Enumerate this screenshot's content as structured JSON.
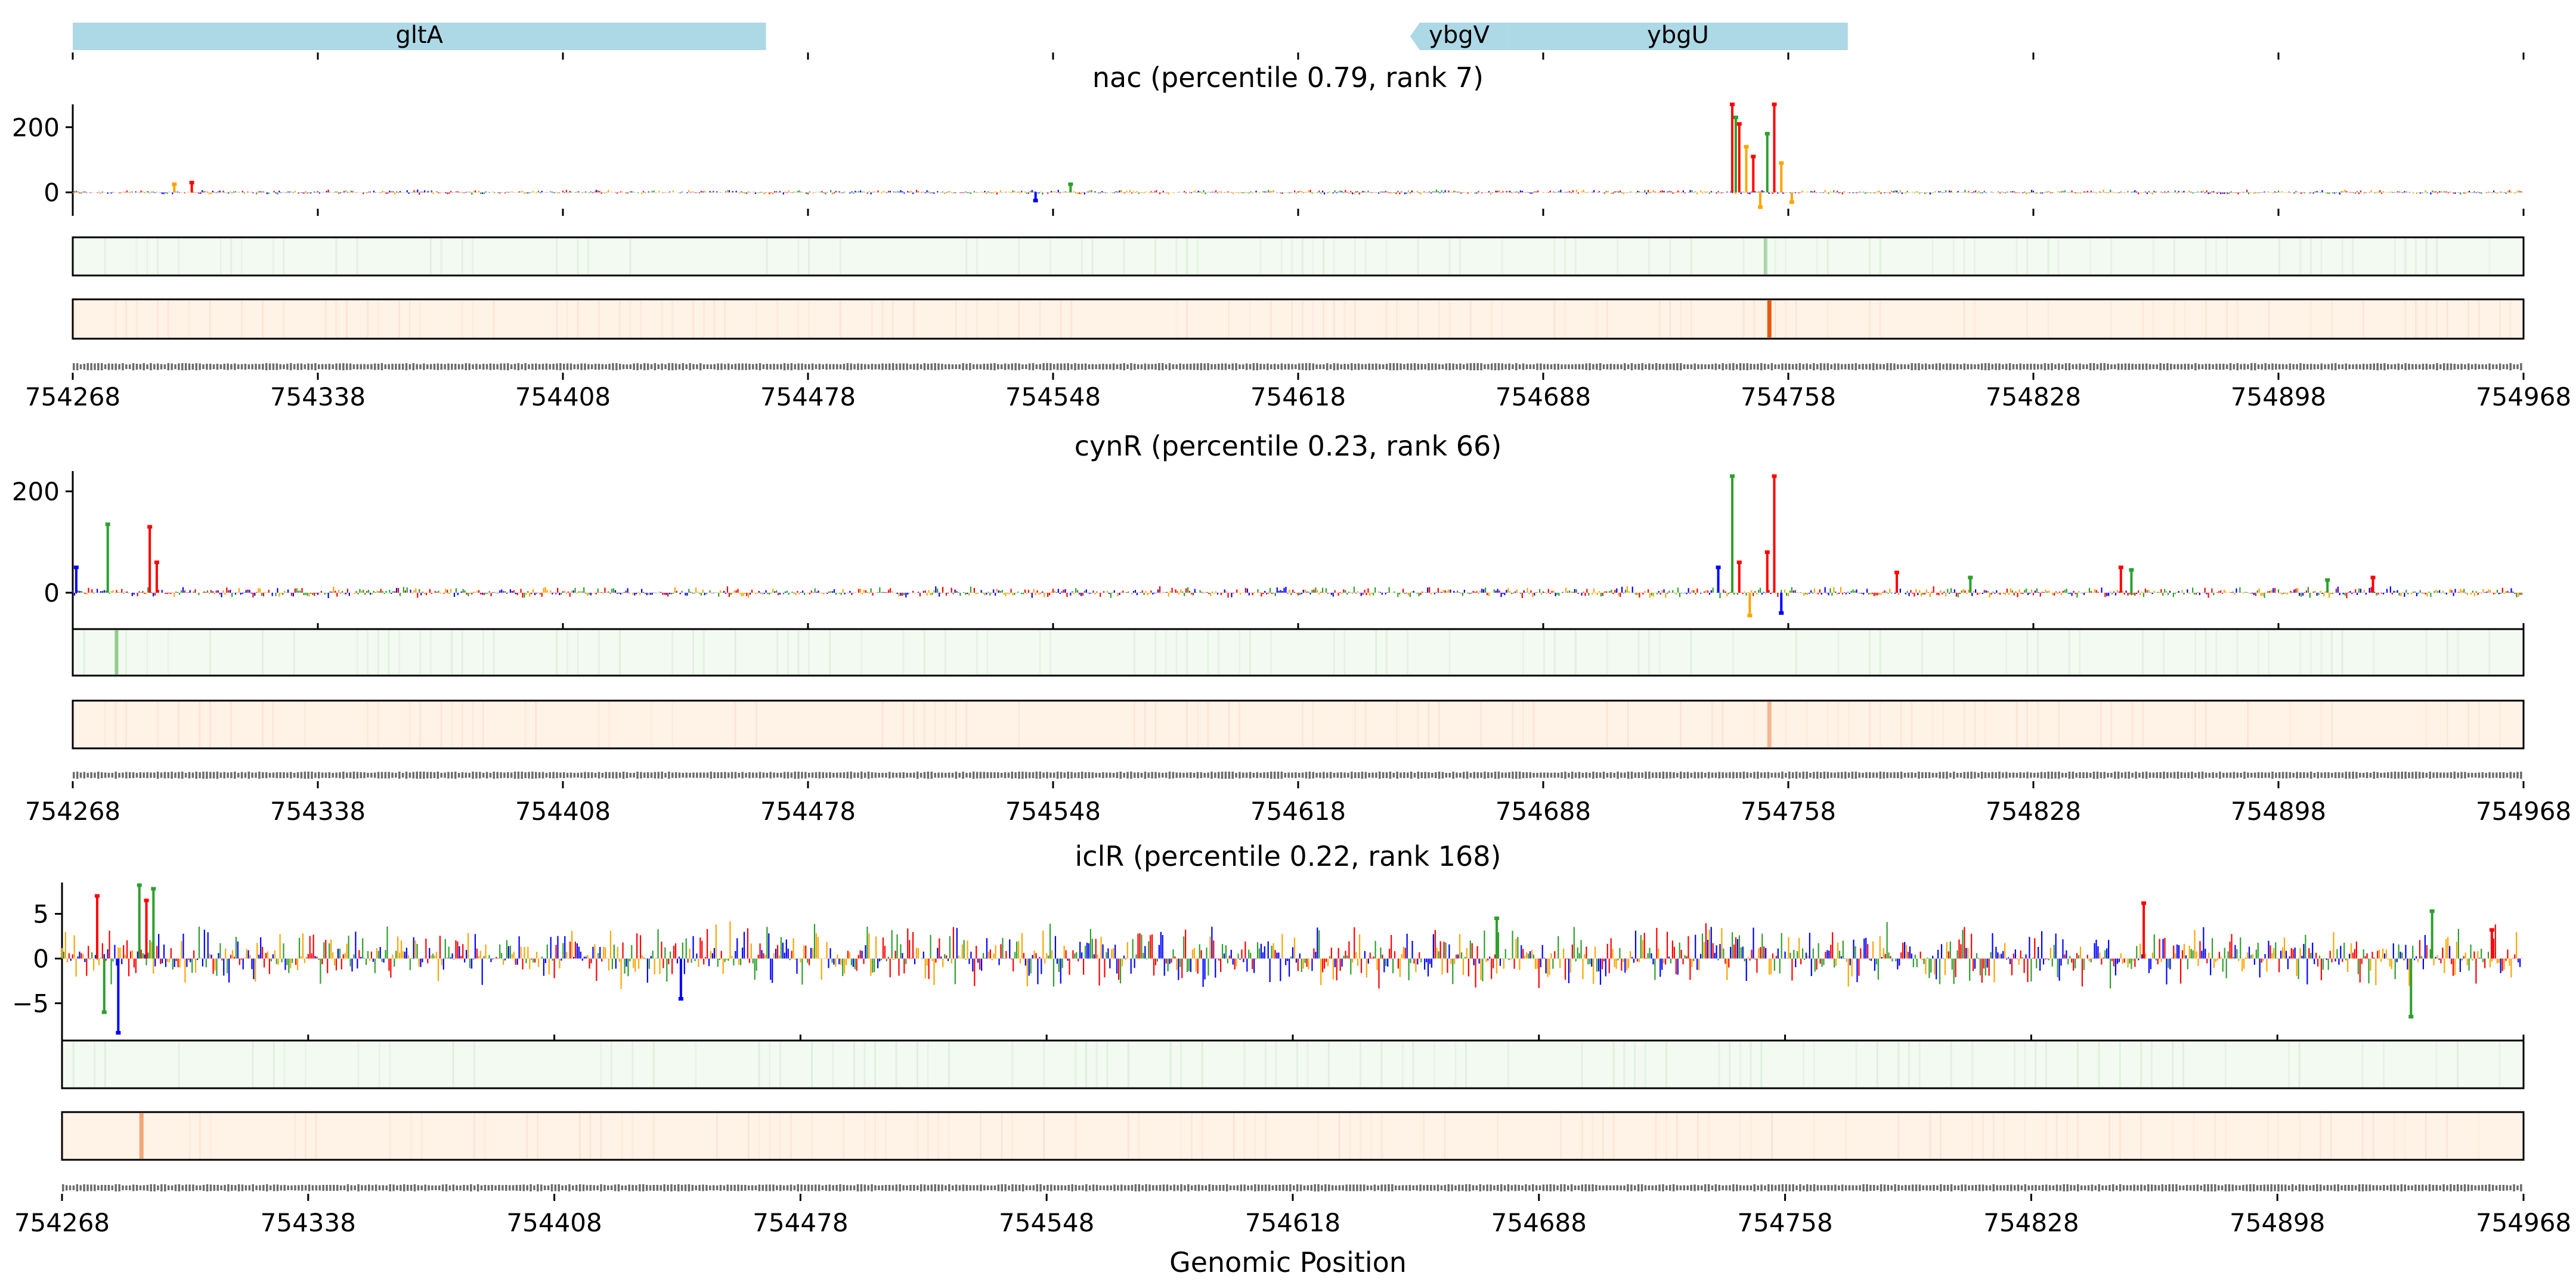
{
  "figure": {
    "xlabel": "Genomic Position"
  },
  "genes": [
    {
      "name": "gltA",
      "start": 754268,
      "end": 754466,
      "strand": "+"
    },
    {
      "name": "ybgV",
      "start": 754650,
      "end": 754678,
      "strand": "-"
    },
    {
      "name": "ybgU",
      "start": 754678,
      "end": 754775,
      "strand": "+"
    }
  ],
  "colors": {
    "gene": "#add8e6",
    "A": "#2ca02c",
    "C": "#0000ff",
    "G": "#ffa500",
    "T": "#ff0000",
    "track1": "#2ca02c",
    "track1_bg": "#f3faf1",
    "track2": "#e8590c",
    "track2_bg": "#fff3e8"
  },
  "chart_data": [
    {
      "type": "bar",
      "title": "nac (percentile 0.79, rank 7)",
      "xlim": [
        754268,
        754968
      ],
      "xticks": [
        "754268",
        "754338",
        "754408",
        "754478",
        "754548",
        "754618",
        "754688",
        "754758",
        "754828",
        "754898",
        "754968"
      ],
      "ylim": [
        -50,
        270
      ],
      "yticks": [
        "200",
        "0"
      ],
      "yticks_values": [
        200,
        0
      ],
      "peaks": [
        {
          "x": 754742,
          "value": 270,
          "base": "T"
        },
        {
          "x": 754743,
          "value": 230,
          "base": "A"
        },
        {
          "x": 754744,
          "value": 210,
          "base": "T"
        },
        {
          "x": 754746,
          "value": 140,
          "base": "G"
        },
        {
          "x": 754748,
          "value": 110,
          "base": "T"
        },
        {
          "x": 754750,
          "value": -45,
          "base": "G"
        },
        {
          "x": 754752,
          "value": 180,
          "base": "A"
        },
        {
          "x": 754754,
          "value": 270,
          "base": "T"
        },
        {
          "x": 754756,
          "value": 90,
          "base": "G"
        },
        {
          "x": 754759,
          "value": -30,
          "base": "G"
        },
        {
          "x": 754297,
          "value": 25,
          "base": "G"
        },
        {
          "x": 754302,
          "value": 30,
          "base": "T"
        },
        {
          "x": 754543,
          "value": -25,
          "base": "C"
        },
        {
          "x": 754553,
          "value": 25,
          "base": "A"
        }
      ],
      "noise": 6,
      "track1_peak": {
        "x": 754751,
        "level": 0.35
      },
      "track2_peak": {
        "x": 754752,
        "level": 1.0
      }
    },
    {
      "type": "bar",
      "title": "cynR (percentile 0.23, rank 66)",
      "xlim": [
        754268,
        754968
      ],
      "xticks": [
        "754268",
        "754338",
        "754408",
        "754478",
        "754548",
        "754618",
        "754688",
        "754758",
        "754828",
        "754898",
        "754968"
      ],
      "ylim": [
        -60,
        240
      ],
      "yticks": [
        "200",
        "0"
      ],
      "yticks_values": [
        200,
        0
      ],
      "peaks": [
        {
          "x": 754278,
          "value": 135,
          "base": "A"
        },
        {
          "x": 754290,
          "value": 130,
          "base": "T"
        },
        {
          "x": 754292,
          "value": 60,
          "base": "T"
        },
        {
          "x": 754269,
          "value": 50,
          "base": "C"
        },
        {
          "x": 754742,
          "value": 230,
          "base": "A"
        },
        {
          "x": 754744,
          "value": 60,
          "base": "T"
        },
        {
          "x": 754747,
          "value": -45,
          "base": "G"
        },
        {
          "x": 754752,
          "value": 80,
          "base": "T"
        },
        {
          "x": 754754,
          "value": 230,
          "base": "T"
        },
        {
          "x": 754756,
          "value": -40,
          "base": "C"
        },
        {
          "x": 754738,
          "value": 50,
          "base": "C"
        },
        {
          "x": 754789,
          "value": 40,
          "base": "T"
        },
        {
          "x": 754810,
          "value": 30,
          "base": "A"
        },
        {
          "x": 754853,
          "value": 50,
          "base": "T"
        },
        {
          "x": 754856,
          "value": 45,
          "base": "A"
        },
        {
          "x": 754912,
          "value": 25,
          "base": "A"
        },
        {
          "x": 754925,
          "value": 30,
          "base": "T"
        }
      ],
      "noise": 9,
      "track1_peak": {
        "x": 754280,
        "level": 0.5
      },
      "track2_peak": {
        "x": 754752,
        "level": 0.4
      }
    },
    {
      "type": "bar",
      "title": "iclR (percentile 0.22, rank 168)",
      "xlim": [
        754268,
        754968
      ],
      "xticks": [
        "754268",
        "754338",
        "754408",
        "754478",
        "754548",
        "754618",
        "754688",
        "754758",
        "754828",
        "754898",
        "754968"
      ],
      "ylim": [
        -8.5,
        8.5
      ],
      "yticks": [
        "5",
        "0",
        "−5"
      ],
      "yticks_values": [
        5,
        0,
        -5
      ],
      "peaks": [
        {
          "x": 754278,
          "value": 7,
          "base": "T"
        },
        {
          "x": 754280,
          "value": -6,
          "base": "A"
        },
        {
          "x": 754284,
          "value": -8.3,
          "base": "C"
        },
        {
          "x": 754290,
          "value": 8.2,
          "base": "A"
        },
        {
          "x": 754294,
          "value": 7.8,
          "base": "A"
        },
        {
          "x": 754292,
          "value": 6.5,
          "base": "T"
        },
        {
          "x": 754444,
          "value": -4.5,
          "base": "C"
        },
        {
          "x": 754676,
          "value": 4.5,
          "base": "A"
        },
        {
          "x": 754860,
          "value": 6.2,
          "base": "T"
        },
        {
          "x": 754936,
          "value": -6.5,
          "base": "A"
        },
        {
          "x": 754942,
          "value": 5.3,
          "base": "A"
        },
        {
          "x": 754959,
          "value": 3.2,
          "base": "T"
        }
      ],
      "noise": 2.8,
      "track1_peak": null,
      "track2_peak": {
        "x": 754290,
        "level": 0.5
      }
    }
  ]
}
